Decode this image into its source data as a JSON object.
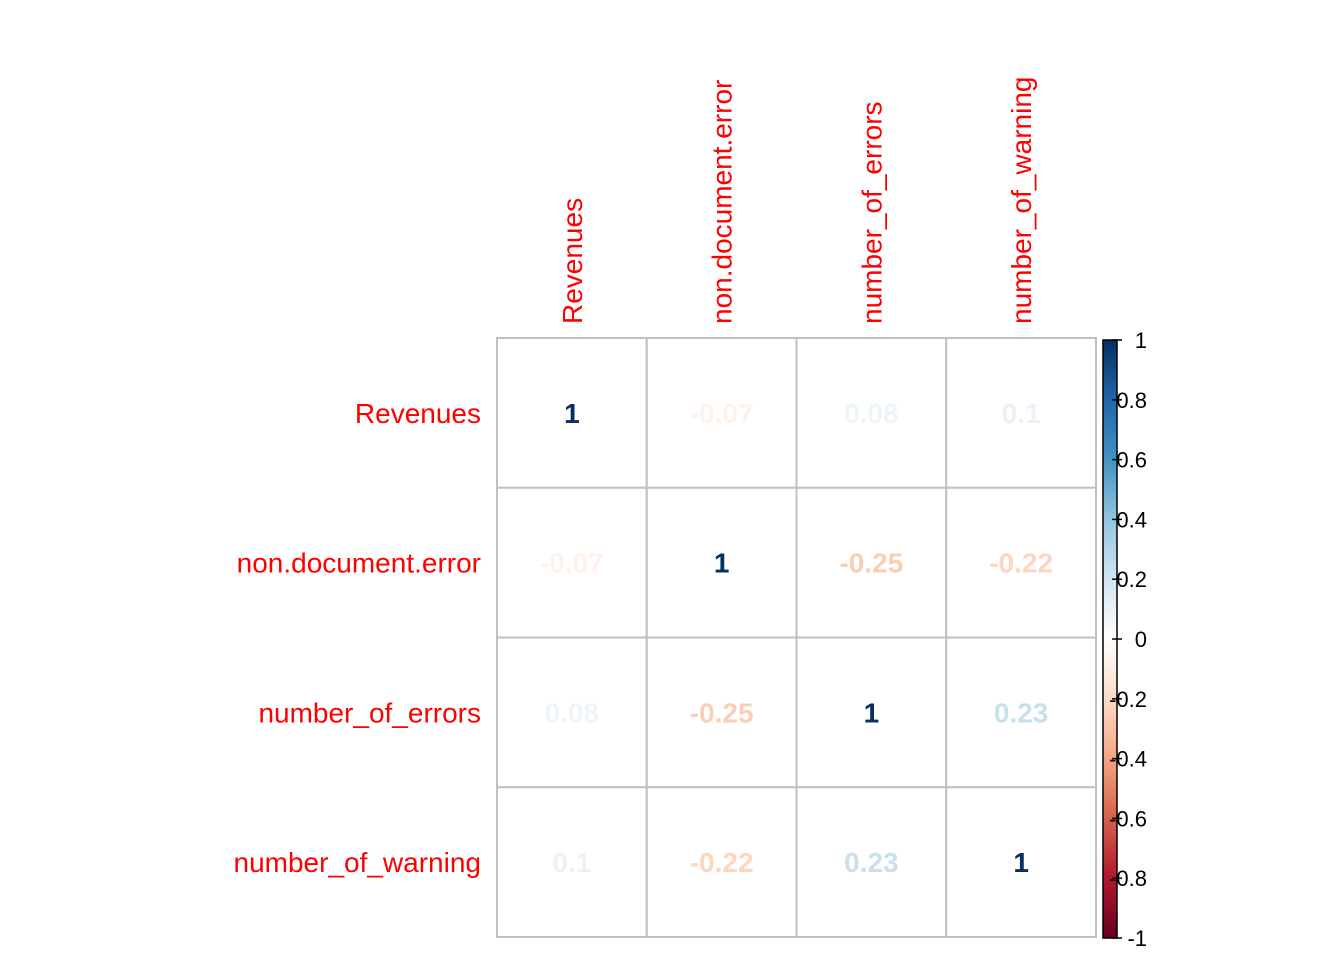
{
  "chart_data": {
    "type": "heatmap",
    "variables": [
      "Revenues",
      "non.document.error",
      "number_of_errors",
      "number_of_warning"
    ],
    "matrix": [
      [
        1,
        -0.07,
        0.08,
        0.1
      ],
      [
        -0.07,
        1,
        -0.25,
        -0.22
      ],
      [
        0.08,
        -0.25,
        1,
        0.23
      ],
      [
        0.1,
        -0.22,
        0.23,
        1
      ]
    ],
    "cell_labels": [
      [
        "1",
        "-0.07",
        "0.08",
        "0.1"
      ],
      [
        "-0.07",
        "1",
        "-0.25",
        "-0.22"
      ],
      [
        "0.08",
        "-0.25",
        "1",
        "0.23"
      ],
      [
        "0.1",
        "-0.22",
        "0.23",
        "1"
      ]
    ],
    "colorbar": {
      "range": [
        -1,
        1
      ],
      "ticks": [
        1,
        0.8,
        0.6,
        0.4,
        0.2,
        0,
        -0.2,
        -0.4,
        -0.6,
        -0.8,
        -1
      ],
      "tick_labels": [
        "1",
        "0.8",
        "0.6",
        "0.4",
        "0.2",
        "0",
        "-0.2",
        "-0.4",
        "-0.6",
        "-0.8",
        "-1"
      ]
    },
    "colors": {
      "label_color": "#ff0000",
      "grid_color": "#c0c0c0",
      "scale_stops": [
        "#67001f",
        "#b2182b",
        "#d6604d",
        "#f4a582",
        "#fddbc7",
        "#ffffff",
        "#d1e5f0",
        "#92c5de",
        "#4393c3",
        "#2166ac",
        "#053061"
      ]
    }
  }
}
